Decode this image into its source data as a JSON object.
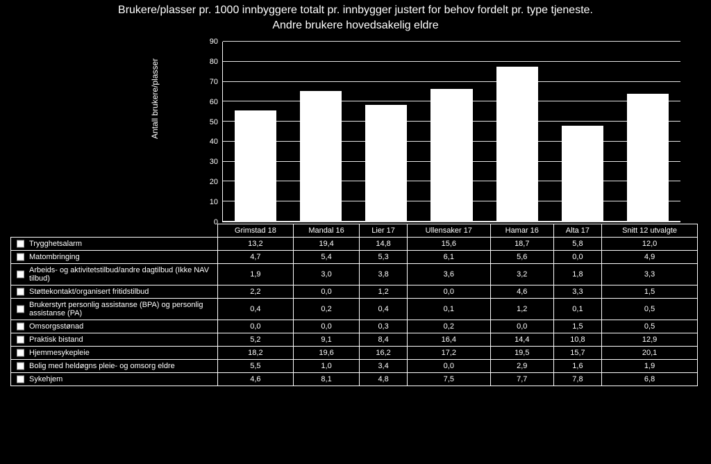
{
  "title_line1": "Brukere/plasser pr. 1000 innbyggere totalt pr. innbygger justert for behov fordelt pr. type tjeneste.",
  "title_line2": "Andre brukere hovedsakelig eldre",
  "ylabel": "Antall brukere/plasser",
  "background_color": "#000000",
  "text_color": "#ffffff",
  "bar_color": "#ffffff",
  "grid_color": "#ffffff",
  "title_fontsize": 16,
  "axis_fontsize": 11,
  "yaxis": {
    "min": 0,
    "max": 90,
    "step": 10,
    "ticks": [
      0,
      10,
      20,
      30,
      40,
      50,
      60,
      70,
      80,
      90
    ]
  },
  "categories": [
    "Grimstad 18",
    "Mandal 16",
    "Lier 17",
    "Ullensaker 17",
    "Hamar 16",
    "Alta 17",
    "Snitt 12 utvalgte"
  ],
  "rows": [
    {
      "label": "Trygghetsalarm",
      "values": [
        "13,2",
        "19,4",
        "14,8",
        "15,6",
        "18,7",
        "5,8",
        "12,0"
      ]
    },
    {
      "label": "Matombringing",
      "values": [
        "4,7",
        "5,4",
        "5,3",
        "6,1",
        "5,6",
        "0,0",
        "4,9"
      ]
    },
    {
      "label": "Arbeids- og aktivitetstilbud/andre dagtilbud (Ikke NAV tilbud)",
      "values": [
        "1,9",
        "3,0",
        "3,8",
        "3,6",
        "3,2",
        "1,8",
        "3,3"
      ]
    },
    {
      "label": "Støttekontakt/organisert fritidstilbud",
      "values": [
        "2,2",
        "0,0",
        "1,2",
        "0,0",
        "4,6",
        "3,3",
        "1,5"
      ]
    },
    {
      "label": "Brukerstyrt personlig assistanse (BPA) og personlig assistanse (PA)",
      "values": [
        "0,4",
        "0,2",
        "0,4",
        "0,1",
        "1,2",
        "0,1",
        "0,5"
      ]
    },
    {
      "label": "Omsorgsstønad",
      "values": [
        "0,0",
        "0,0",
        "0,3",
        "0,2",
        "0,0",
        "1,5",
        "0,5"
      ]
    },
    {
      "label": "Praktisk bistand",
      "values": [
        "5,2",
        "9,1",
        "8,4",
        "16,4",
        "14,4",
        "10,8",
        "12,9"
      ]
    },
    {
      "label": "Hjemmesykepleie",
      "values": [
        "18,2",
        "19,6",
        "16,2",
        "17,2",
        "19,5",
        "15,7",
        "20,1"
      ]
    },
    {
      "label": "Bolig med heldøgns pleie- og omsorg eldre",
      "values": [
        "5,5",
        "1,0",
        "3,4",
        "0,0",
        "2,9",
        "1,6",
        "1,9"
      ]
    },
    {
      "label": "Sykehjem",
      "values": [
        "4,6",
        "8,1",
        "4,8",
        "7,5",
        "7,7",
        "7,8",
        "6,8"
      ]
    }
  ],
  "bar_totals": [
    55.9,
    65.8,
    58.6,
    66.7,
    77.8,
    48.4,
    64.4
  ],
  "bar_width": 0.66
}
